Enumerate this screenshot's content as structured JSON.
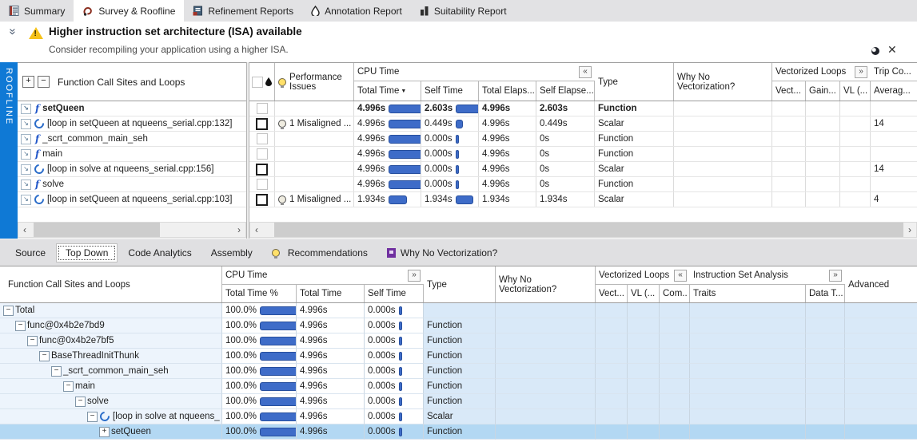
{
  "app_tabs": {
    "summary": "Summary",
    "survey": "Survey & Roofline",
    "refinement": "Refinement Reports",
    "annotation": "Annotation Report",
    "suitability": "Suitability Report"
  },
  "banner": {
    "title": "Higher instruction set architecture (ISA) available",
    "subtitle": "Consider recompiling your application using a higher ISA.",
    "close_label": "✕"
  },
  "roofline_tab": "ROOFLINE",
  "survey": {
    "tree_header": "Function Call Sites and Loops",
    "perf_issues_header": "Performance Issues",
    "cpu_time_group": "CPU Time",
    "columns": {
      "total_time": "Total Time",
      "self_time": "Self Time",
      "total_elapsed": "Total Elaps...",
      "self_elapsed": "Self Elapse...",
      "type": "Type",
      "why": "Why No Vectorization?",
      "vloops_group": "Vectorized Loops",
      "vect": "Vect...",
      "gain": "Gain...",
      "vl": "VL (...",
      "trip_group": "Trip Co...",
      "avg": "Averag..."
    },
    "rows": [
      {
        "name": "setQueen",
        "total_time": "4.996s",
        "total_bar": 54,
        "self_time": "2.603s",
        "self_bar": 28,
        "total_elapsed": "4.996s",
        "self_elapsed": "2.603s",
        "type": "Function",
        "issues": "",
        "trip": ""
      },
      {
        "name": "[loop in setQueen at nqueens_serial.cpp:132]",
        "total_time": "4.996s",
        "total_bar": 54,
        "self_time": "0.449s",
        "self_bar": 7,
        "total_elapsed": "4.996s",
        "self_elapsed": "0.449s",
        "type": "Scalar",
        "issues": "1 Misaligned ...",
        "trip": "14"
      },
      {
        "name": "_scrt_common_main_seh",
        "total_time": "4.996s",
        "total_bar": 54,
        "self_time": "0.000s",
        "self_bar": 2,
        "total_elapsed": "4.996s",
        "self_elapsed": "0s",
        "type": "Function",
        "issues": "",
        "trip": ""
      },
      {
        "name": "main",
        "total_time": "4.996s",
        "total_bar": 54,
        "self_time": "0.000s",
        "self_bar": 2,
        "total_elapsed": "4.996s",
        "self_elapsed": "0s",
        "type": "Function",
        "issues": "",
        "trip": ""
      },
      {
        "name": "[loop in solve at nqueens_serial.cpp:156]",
        "total_time": "4.996s",
        "total_bar": 54,
        "self_time": "0.000s",
        "self_bar": 2,
        "total_elapsed": "4.996s",
        "self_elapsed": "0s",
        "type": "Scalar",
        "issues": "",
        "trip": "14"
      },
      {
        "name": "solve",
        "total_time": "4.996s",
        "total_bar": 54,
        "self_time": "0.000s",
        "self_bar": 2,
        "total_elapsed": "4.996s",
        "self_elapsed": "0s",
        "type": "Function",
        "issues": "",
        "trip": ""
      },
      {
        "name": "[loop in setQueen at nqueens_serial.cpp:103]",
        "total_time": "1.934s",
        "total_bar": 21,
        "self_time": "1.934s",
        "self_bar": 20,
        "total_elapsed": "1.934s",
        "self_elapsed": "1.934s",
        "type": "Scalar",
        "issues": "1 Misaligned ...",
        "trip": "4"
      }
    ]
  },
  "detail_tabs": {
    "source": "Source",
    "top_down": "Top Down",
    "code_analytics": "Code Analytics",
    "assembly": "Assembly",
    "recommendations": "Recommendations",
    "why_no_vec": "Why No Vectorization?"
  },
  "topdown": {
    "tree_header": "Function Call Sites and Loops",
    "cpu_time_group": "CPU Time",
    "columns": {
      "total_pct": "Total Time %",
      "total_time": "Total Time",
      "self_time": "Self Time",
      "type": "Type",
      "why": "Why No Vectorization?",
      "vloops_group": "Vectorized Loops",
      "vect": "Vect...",
      "vl": "VL (...",
      "com": "Com..",
      "isa_group": "Instruction Set Analysis",
      "traits": "Traits",
      "data_t": "Data T...",
      "advanced": "Advanced"
    },
    "rows": [
      {
        "name": "Total",
        "pct": "100.0%",
        "bar": 52,
        "total": "4.996s",
        "self": "0.000s",
        "self_bar": 2,
        "type": ""
      },
      {
        "name": "func@0x4b2e7bd9",
        "pct": "100.0%",
        "bar": 52,
        "total": "4.996s",
        "self": "0.000s",
        "self_bar": 2,
        "type": "Function"
      },
      {
        "name": "func@0x4b2e7bf5",
        "pct": "100.0%",
        "bar": 52,
        "total": "4.996s",
        "self": "0.000s",
        "self_bar": 2,
        "type": "Function"
      },
      {
        "name": "BaseThreadInitThunk",
        "pct": "100.0%",
        "bar": 52,
        "total": "4.996s",
        "self": "0.000s",
        "self_bar": 2,
        "type": "Function"
      },
      {
        "name": "_scrt_common_main_seh",
        "pct": "100.0%",
        "bar": 52,
        "total": "4.996s",
        "self": "0.000s",
        "self_bar": 2,
        "type": "Function"
      },
      {
        "name": "main",
        "pct": "100.0%",
        "bar": 52,
        "total": "4.996s",
        "self": "0.000s",
        "self_bar": 2,
        "type": "Function"
      },
      {
        "name": "solve",
        "pct": "100.0%",
        "bar": 52,
        "total": "4.996s",
        "self": "0.000s",
        "self_bar": 2,
        "type": "Function"
      },
      {
        "name": "[loop in solve at nqueens_",
        "pct": "100.0%",
        "bar": 52,
        "total": "4.996s",
        "self": "0.000s",
        "self_bar": 2,
        "type": "Scalar"
      },
      {
        "name": "setQueen",
        "pct": "100.0%",
        "bar": 52,
        "total": "4.996s",
        "self": "0.000s",
        "self_bar": 2,
        "type": "Function"
      }
    ]
  }
}
